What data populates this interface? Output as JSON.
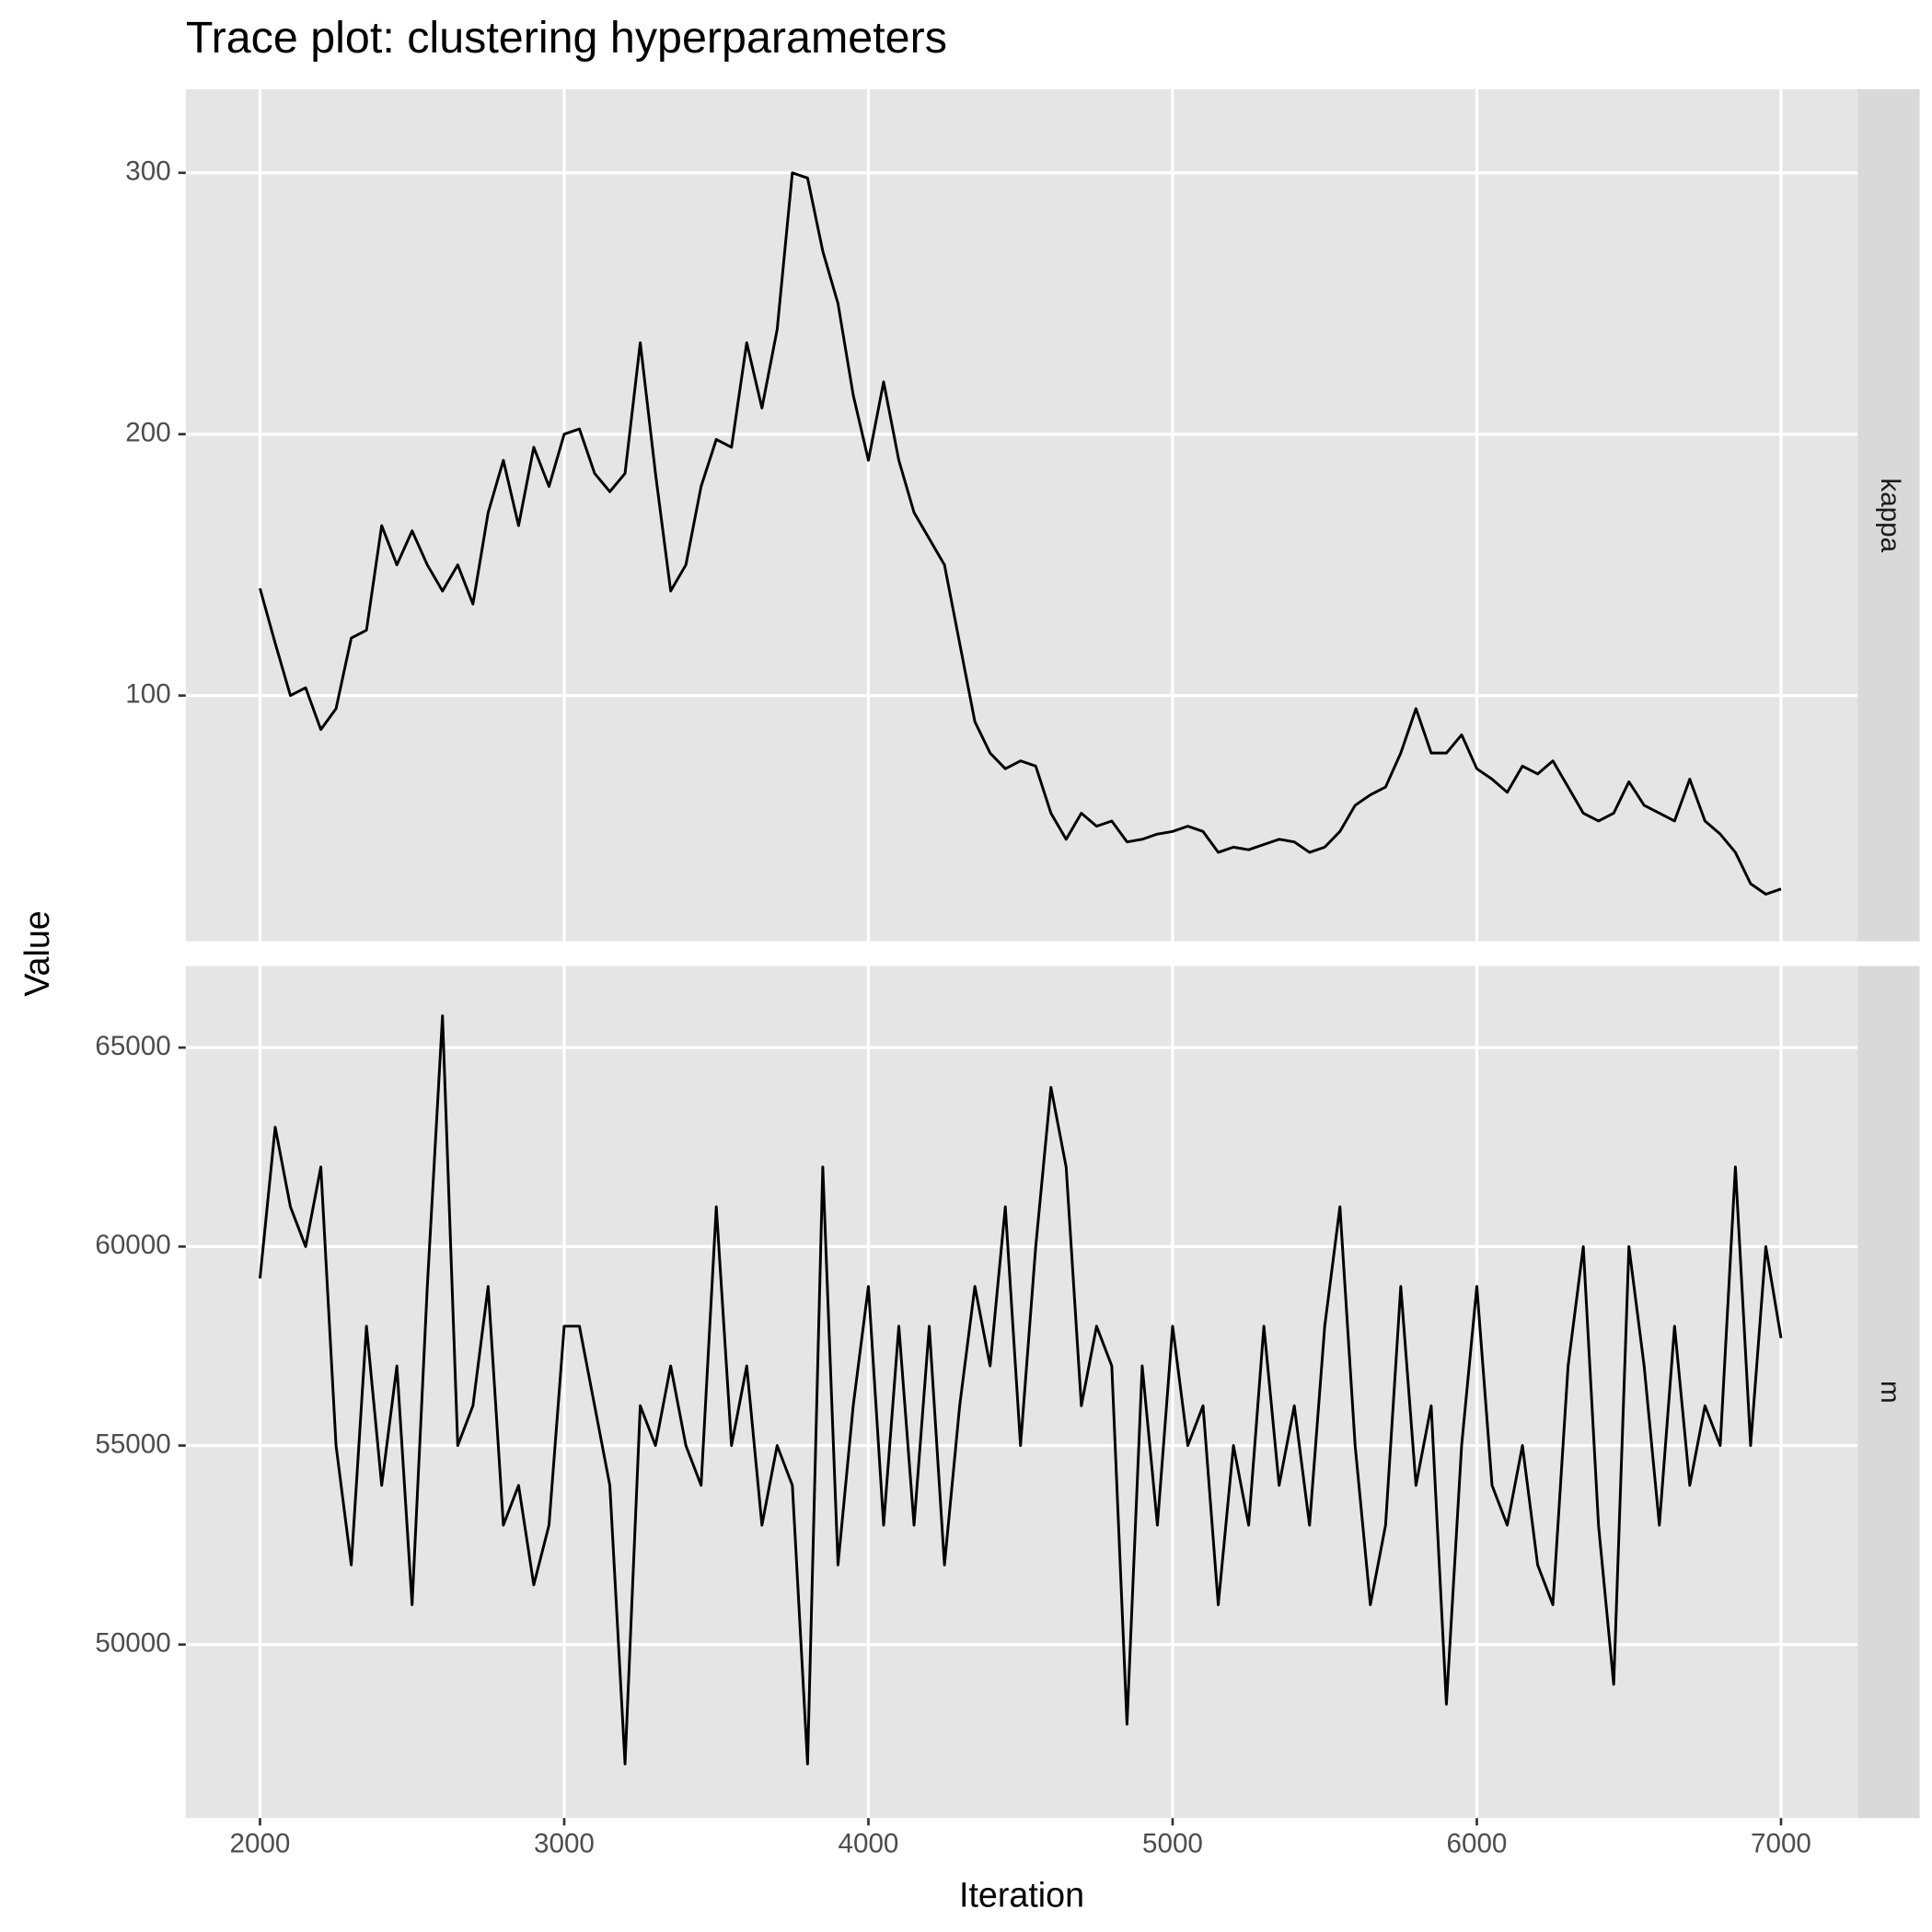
{
  "chart_data": {
    "type": "line",
    "title": "Trace plot: clustering hyperparameters",
    "x_label": "Iteration",
    "y_label": "Value",
    "color": "#000000",
    "grid": true,
    "x": [
      2000,
      2050,
      2100,
      2150,
      2200,
      2250,
      2300,
      2350,
      2400,
      2450,
      2500,
      2550,
      2600,
      2650,
      2700,
      2750,
      2800,
      2850,
      2900,
      2950,
      3000,
      3050,
      3100,
      3150,
      3200,
      3250,
      3300,
      3350,
      3400,
      3450,
      3500,
      3550,
      3600,
      3650,
      3700,
      3750,
      3800,
      3850,
      3900,
      3950,
      4000,
      4050,
      4100,
      4150,
      4200,
      4250,
      4300,
      4350,
      4400,
      4450,
      4500,
      4550,
      4600,
      4650,
      4700,
      4750,
      4800,
      4850,
      4900,
      4950,
      5000,
      5050,
      5100,
      5150,
      5200,
      5250,
      5300,
      5350,
      5400,
      5450,
      5500,
      5550,
      5600,
      5650,
      5700,
      5750,
      5800,
      5850,
      5900,
      5950,
      6000,
      6050,
      6100,
      6150,
      6200,
      6250,
      6300,
      6350,
      6400,
      6450,
      6500,
      6550,
      6600,
      6650,
      6700,
      6750,
      6800,
      6850,
      6900,
      6950,
      7000
    ],
    "xlim": [
      1756,
      7252
    ],
    "xticks": [
      2000,
      3000,
      4000,
      5000,
      6000,
      7000
    ],
    "facets": [
      {
        "name": "kappa",
        "ylim": [
          6,
          332
        ],
        "yticks": [
          100,
          200,
          300
        ],
        "values": [
          141,
          120,
          100,
          103,
          87,
          95,
          122,
          125,
          165,
          150,
          163,
          150,
          140,
          150,
          135,
          170,
          190,
          165,
          195,
          180,
          200,
          202,
          185,
          178,
          185,
          235,
          185,
          140,
          150,
          180,
          198,
          195,
          235,
          210,
          240,
          300,
          298,
          270,
          250,
          215,
          190,
          220,
          190,
          170,
          160,
          150,
          120,
          90,
          78,
          72,
          75,
          73,
          55,
          45,
          55,
          50,
          52,
          44,
          45,
          47,
          48,
          50,
          48,
          40,
          42,
          41,
          43,
          45,
          44,
          40,
          42,
          48,
          58,
          62,
          65,
          78,
          95,
          78,
          78,
          85,
          72,
          68,
          63,
          73,
          70,
          75,
          65,
          55,
          52,
          55,
          67,
          58,
          55,
          52,
          68,
          52,
          47,
          40,
          28,
          24,
          26
        ]
      },
      {
        "name": "m",
        "ylim": [
          45640,
          67050
        ],
        "yticks": [
          50000,
          55000,
          60000,
          65000
        ],
        "values": [
          59200,
          63000,
          61000,
          60000,
          62000,
          55000,
          52000,
          58000,
          54000,
          57000,
          51000,
          59000,
          65800,
          55000,
          56000,
          59000,
          53000,
          54000,
          51500,
          53000,
          58000,
          58000,
          56000,
          54000,
          47000,
          56000,
          55000,
          57000,
          55000,
          54000,
          61000,
          55000,
          57000,
          53000,
          55000,
          54000,
          47000,
          62000,
          52000,
          56000,
          59000,
          53000,
          58000,
          53000,
          58000,
          52000,
          56000,
          59000,
          57000,
          61000,
          55000,
          60000,
          64000,
          62000,
          56000,
          58000,
          57000,
          48000,
          57000,
          53000,
          58000,
          55000,
          56000,
          51000,
          55000,
          53000,
          58000,
          54000,
          56000,
          53000,
          58000,
          61000,
          55000,
          51000,
          53000,
          59000,
          54000,
          56000,
          48500,
          55000,
          59000,
          54000,
          53000,
          55000,
          52000,
          51000,
          57000,
          60000,
          53000,
          49000,
          60000,
          57000,
          53000,
          58000,
          54000,
          56000,
          55000,
          62000,
          55000,
          60000,
          57700
        ]
      }
    ]
  }
}
